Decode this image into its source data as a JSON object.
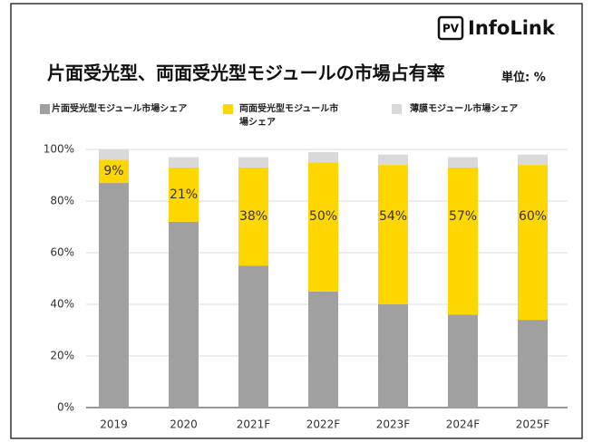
{
  "brand": {
    "badge": "PV",
    "name": "InfoLink"
  },
  "chart_data": {
    "type": "stacked_bar",
    "title": "片面受光型、両面受光型モジュールの市場占有率",
    "subtitle": "単位: %",
    "categories": [
      "2019",
      "2020",
      "2021F",
      "2022F",
      "2023F",
      "2024F",
      "2025F"
    ],
    "series": [
      {
        "name": "片面受光型モジュール市場シェア",
        "color": "#a0a0a0",
        "values": [
          87,
          72,
          55,
          45,
          40,
          36,
          34
        ]
      },
      {
        "name": "両面受光型モジュール市場シェア",
        "color": "#ffd700",
        "values": [
          9,
          21,
          38,
          50,
          54,
          57,
          60
        ],
        "value_labels": [
          "9%",
          "21%",
          "38%",
          "50%",
          "54%",
          "57%",
          "60%"
        ]
      },
      {
        "name": "薄膜モジュール市場シェア",
        "color": "#d9d9d9",
        "values": [
          4,
          4,
          4,
          4,
          4,
          4,
          4
        ]
      }
    ],
    "ylim": [
      0,
      100
    ],
    "yticks": [
      {
        "value": 0,
        "label": "0%"
      },
      {
        "value": 20,
        "label": "20%"
      },
      {
        "value": 40,
        "label": "40%"
      },
      {
        "value": 60,
        "label": "60%"
      },
      {
        "value": 80,
        "label": "80%"
      },
      {
        "value": 100,
        "label": "100%"
      }
    ],
    "grid": true
  }
}
